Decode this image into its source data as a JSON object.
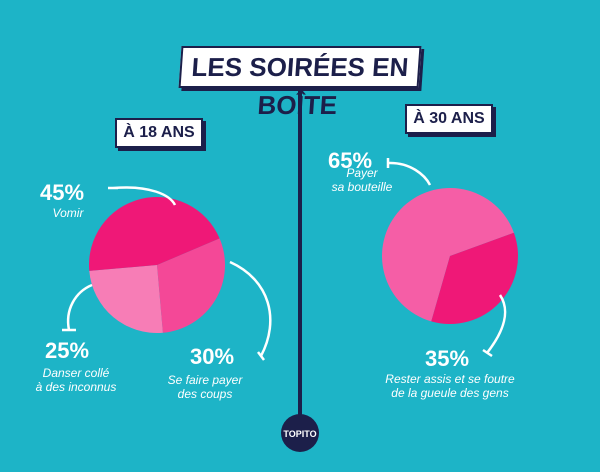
{
  "title": "LES SOIRÉES EN BOÎTE",
  "logo": "TOPITO",
  "chart_data": [
    {
      "type": "pie",
      "title": "À 18 ANS",
      "categories": [
        "Vomir",
        "Se faire payer\ndes coups",
        "Danser collé\nà des inconnus"
      ],
      "values": [
        45,
        30,
        25
      ],
      "value_labels": [
        "45%",
        "30%",
        "25%"
      ],
      "colors": [
        "#ef1877",
        "#f44897",
        "#f77db6"
      ]
    },
    {
      "type": "pie",
      "title": "À 30 ANS",
      "categories": [
        "Rester assis et se foutre\nde la gueule des gens",
        "Payer\nsa bouteille"
      ],
      "values": [
        35,
        65
      ],
      "value_labels": [
        "35%",
        "65%"
      ],
      "colors": [
        "#ef1877",
        "#f55ea6"
      ]
    }
  ]
}
